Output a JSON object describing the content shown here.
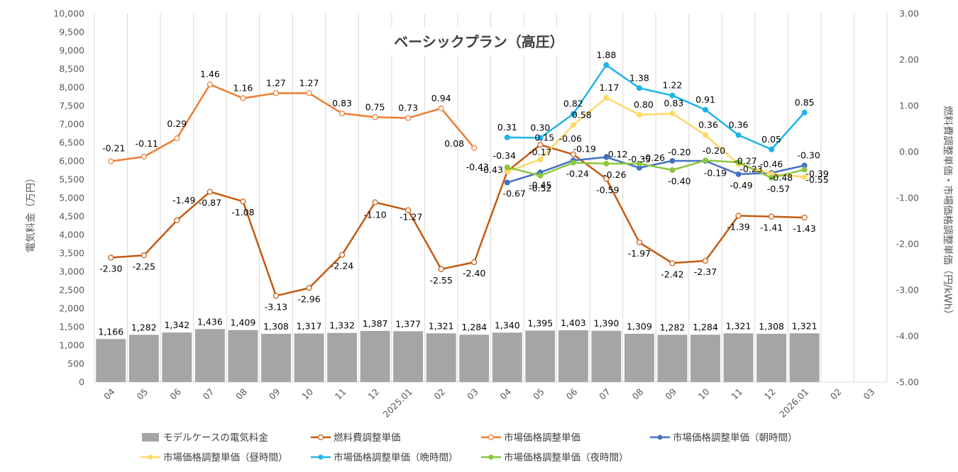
{
  "chart_data": {
    "type": "bar+line",
    "title": "ベーシックプラン（高圧）",
    "ylabel_left": "電気料金（万円）",
    "ylabel_right": "燃料費調整単価・市場価格調整単価（円/kWh）",
    "ylim_left": [
      0,
      10000
    ],
    "ylim_right": [
      -5.0,
      3.0
    ],
    "yticks_left": [
      "0",
      "500",
      "1,000",
      "1,500",
      "2,000",
      "2,500",
      "3,000",
      "3,500",
      "4,000",
      "4,500",
      "5,000",
      "5,500",
      "6,000",
      "6,500",
      "7,000",
      "7,500",
      "8,000",
      "8,500",
      "9,000",
      "9,500",
      "10,000"
    ],
    "yticks_right": [
      "-5.00",
      "-4.00",
      "-3.00",
      "-2.00",
      "-1.00",
      "0.00",
      "1.00",
      "2.00",
      "3.00"
    ],
    "categories": [
      "04",
      "05",
      "06",
      "07",
      "08",
      "09",
      "10",
      "11",
      "12",
      "2025.01",
      "02",
      "03",
      "04",
      "05",
      "06",
      "07",
      "08",
      "09",
      "10",
      "11",
      "12",
      "2026.01",
      "02",
      "03"
    ],
    "series": [
      {
        "name": "モデルケースの電気料金",
        "kind": "bar",
        "color": "#a5a5a5",
        "values": [
          1166,
          1282,
          1342,
          1436,
          1409,
          1308,
          1317,
          1332,
          1387,
          1377,
          1321,
          1284,
          1340,
          1395,
          1403,
          1390,
          1309,
          1282,
          1284,
          1321,
          1308,
          1321,
          null,
          null
        ],
        "labels": [
          "1,166",
          "1,282",
          "1,342",
          "1,436",
          "1,409",
          "1,308",
          "1,317",
          "1,332",
          "1,387",
          "1,377",
          "1,321",
          "1,284",
          "1,340",
          "1,395",
          "1,403",
          "1,390",
          "1,309",
          "1,282",
          "1,284",
          "1,321",
          "1,308",
          "1,321",
          "",
          ""
        ]
      },
      {
        "name": "燃料費調整単価",
        "kind": "line",
        "color": "#c55a11",
        "marker": "hollow",
        "values": [
          -2.3,
          -2.25,
          -1.49,
          -0.87,
          -1.08,
          -3.13,
          -2.96,
          -2.24,
          -1.1,
          -1.27,
          -2.55,
          -2.4,
          -0.43,
          0.15,
          -0.06,
          -0.59,
          -1.97,
          -2.42,
          -2.37,
          -1.39,
          -1.41,
          -1.43,
          null,
          null
        ],
        "labels": [
          "-2.30",
          "-2.25",
          "-1.49",
          "-0.87",
          "-1.08",
          "-3.13",
          "-2.96",
          "-2.24",
          "-1.10",
          "-1.27",
          "-2.55",
          "-2.40",
          "-0.43",
          "0.15",
          "-0.06",
          "-0.59",
          "-1.97",
          "-2.42",
          "-2.37",
          "-1.39",
          "-1.41",
          "-1.43",
          "",
          ""
        ]
      },
      {
        "name": "市場価格調整単価",
        "kind": "line",
        "color": "#ed7d31",
        "marker": "hollow",
        "values": [
          -0.21,
          -0.11,
          0.29,
          1.46,
          1.16,
          1.27,
          1.27,
          0.83,
          0.75,
          0.73,
          0.94,
          0.08,
          null,
          null,
          null,
          null,
          null,
          null,
          null,
          null,
          null,
          null,
          null,
          null
        ],
        "labels": [
          "-0.21",
          "-0.11",
          "0.29",
          "1.46",
          "1.16",
          "1.27",
          "1.27",
          "0.83",
          "0.75",
          "0.73",
          "0.94",
          "0.08",
          "",
          "",
          "",
          "",
          "",
          "",
          "",
          "",
          "",
          "",
          "",
          ""
        ]
      },
      {
        "name": "市場価格調整単価（朝時間）",
        "kind": "line",
        "color": "#4472c4",
        "marker": "filled",
        "values": [
          null,
          null,
          null,
          null,
          null,
          null,
          null,
          null,
          null,
          null,
          null,
          null,
          -0.67,
          -0.45,
          -0.19,
          -0.12,
          -0.35,
          -0.2,
          -0.2,
          -0.49,
          -0.46,
          -0.3,
          null,
          null
        ],
        "labels": [
          "",
          "",
          "",
          "",
          "",
          "",
          "",
          "",
          "",
          "",
          "",
          "",
          "-0.67",
          "-0.45",
          "-0.19",
          "-0.12",
          "-0.35",
          "-0.20",
          "-0.20",
          "-0.49",
          "-0.46",
          "-0.30",
          "",
          ""
        ]
      },
      {
        "name": "市場価格調整単価（昼時間）",
        "kind": "line",
        "color": "#ffd966",
        "marker": "filled",
        "values": [
          null,
          null,
          null,
          null,
          null,
          null,
          null,
          null,
          null,
          null,
          null,
          null,
          -0.43,
          -0.17,
          0.58,
          1.17,
          0.8,
          0.83,
          0.36,
          -0.27,
          -0.48,
          -0.55,
          null,
          null
        ],
        "labels": [
          "",
          "",
          "",
          "",
          "",
          "",
          "",
          "",
          "",
          "",
          "",
          "",
          "-0.43",
          "-0.17",
          "0.58",
          "1.17",
          "0.80",
          "0.83",
          "0.36",
          "-0.27",
          "-0.48",
          "-0.55",
          "",
          ""
        ]
      },
      {
        "name": "市場価格調整単価（晩時間）",
        "kind": "line",
        "color": "#1fb4e8",
        "marker": "filled",
        "values": [
          null,
          null,
          null,
          null,
          null,
          null,
          null,
          null,
          null,
          null,
          null,
          null,
          0.31,
          0.3,
          0.82,
          1.88,
          1.38,
          1.22,
          0.91,
          0.36,
          0.05,
          0.85,
          null,
          null
        ],
        "labels": [
          "",
          "",
          "",
          "",
          "",
          "",
          "",
          "",
          "",
          "",
          "",
          "",
          "0.31",
          "0.30",
          "0.82",
          "1.88",
          "1.38",
          "1.22",
          "0.91",
          "0.36",
          "0.05",
          "0.85",
          "",
          ""
        ]
      },
      {
        "name": "市場価格調整単価（夜時間）",
        "kind": "line",
        "color": "#8dc63f",
        "marker": "filled",
        "values": [
          null,
          null,
          null,
          null,
          null,
          null,
          null,
          null,
          null,
          null,
          null,
          null,
          -0.34,
          -0.52,
          -0.24,
          -0.26,
          -0.26,
          -0.4,
          -0.19,
          -0.23,
          -0.57,
          -0.39,
          null,
          null
        ],
        "labels": [
          "",
          "",
          "",
          "",
          "",
          "",
          "",
          "",
          "",
          "",
          "",
          "",
          "-0.34",
          "-0.52",
          "-0.24",
          "-0.26",
          "-0.26",
          "-0.40",
          "-0.19",
          "-0.23",
          "-0.57",
          "-0.39",
          "",
          ""
        ]
      }
    ],
    "legend_position": "bottom",
    "grid": "vertical"
  }
}
